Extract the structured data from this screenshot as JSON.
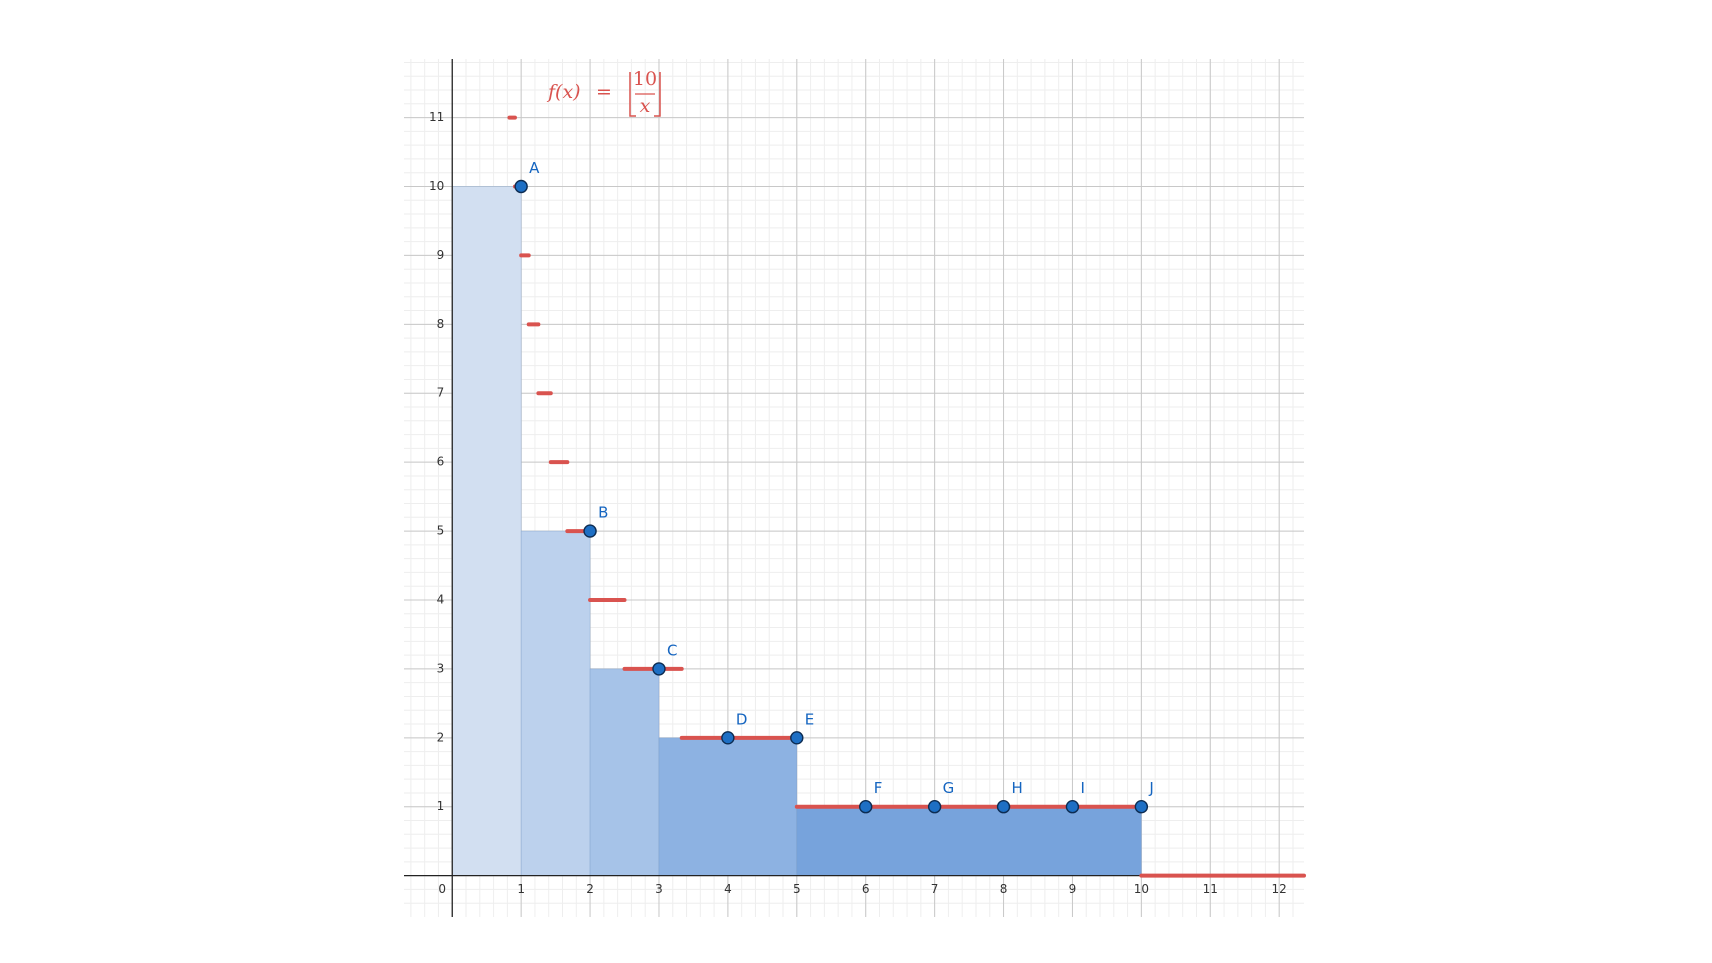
{
  "chart_data": {
    "type": "floor-plot",
    "function_label": {
      "lhs": "f(x)",
      "eq": "=",
      "numerator": "10",
      "denominator": "x"
    },
    "xlim": [
      -0.7,
      12.36
    ],
    "ylim": [
      -0.6,
      11.85
    ],
    "xticks": [
      0,
      1,
      2,
      3,
      4,
      5,
      6,
      7,
      8,
      9,
      10,
      11,
      12
    ],
    "yticks": [
      1,
      2,
      3,
      4,
      5,
      6,
      7,
      8,
      9,
      10,
      11
    ],
    "grid": true,
    "minor_grid_step": 0.2,
    "bars": {
      "edges": [
        0,
        1,
        2,
        3,
        5,
        10
      ],
      "values": [
        10,
        5,
        3,
        2,
        1
      ],
      "colors": [
        "#d2dff1",
        "#bcd1ed",
        "#a6c3e8",
        "#8db2e2",
        "#77a3dc"
      ]
    },
    "segments": {
      "color": "#d9534f",
      "values": [
        11,
        10,
        9,
        8,
        7,
        6,
        5,
        4,
        3,
        2,
        1,
        0
      ],
      "x": [
        [
          0.83,
          0.91
        ],
        [
          0.91,
          1
        ],
        [
          1,
          1.11
        ],
        [
          1.11,
          1.25
        ],
        [
          1.25,
          1.43
        ],
        [
          1.43,
          1.67
        ],
        [
          1.67,
          2
        ],
        [
          2,
          2.5
        ],
        [
          2.5,
          3.33
        ],
        [
          3.33,
          5
        ],
        [
          5,
          10
        ],
        [
          10,
          12.36
        ]
      ]
    },
    "points": {
      "color": "#1e6fc4",
      "labels": [
        "A",
        "B",
        "C",
        "D",
        "E",
        "F",
        "G",
        "H",
        "I",
        "J"
      ],
      "x": [
        1,
        2,
        3,
        4,
        5,
        6,
        7,
        8,
        9,
        10
      ],
      "values": [
        10,
        5,
        3,
        2,
        2,
        1,
        1,
        1,
        1,
        1
      ]
    }
  }
}
